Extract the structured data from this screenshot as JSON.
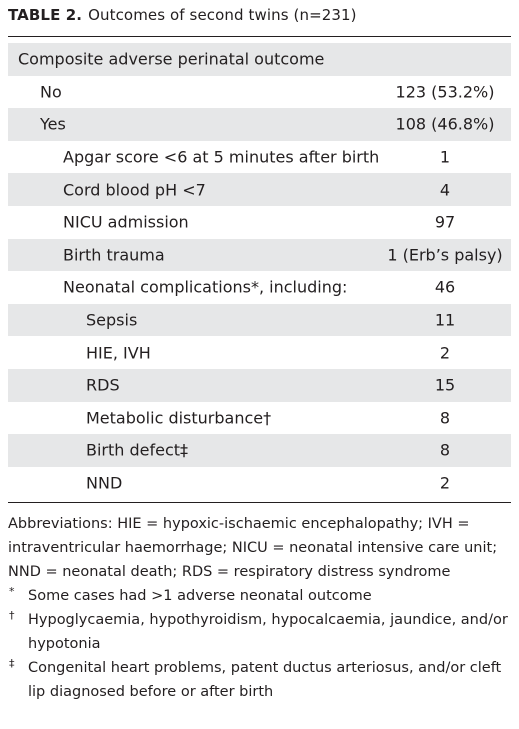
{
  "header": {
    "label": "TABLE 2.",
    "title": "Outcomes of second twins (n=231)"
  },
  "table": {
    "rows": [
      [
        "Composite adverse perinatal outcome",
        null
      ],
      [
        "No",
        "123 (53.2%)"
      ],
      [
        "Yes",
        "108 (46.8%)"
      ],
      [
        "Apgar score <6 at 5 minutes after birth",
        "1"
      ],
      [
        "Cord blood pH <7",
        "4"
      ],
      [
        "NICU admission",
        "97"
      ],
      [
        "Birth trauma",
        "1 (Erb’s palsy)"
      ],
      [
        "Neonatal complications*, including:",
        "46"
      ],
      [
        "Sepsis",
        "11"
      ],
      [
        "HIE, IVH",
        "2"
      ],
      [
        "RDS",
        "15"
      ],
      [
        "Metabolic disturbance†",
        "8"
      ],
      [
        "Birth defect‡",
        "8"
      ],
      [
        "NND",
        "2"
      ]
    ]
  },
  "footnotes": {
    "abbreviations": "Abbreviations: HIE = hypoxic-ischaemic encephalopathy; IVH = intraventricular haemorrhage; NICU = neonatal intensive care unit; NND = neonatal death; RDS = respiratory distress syndrome",
    "notes": [
      {
        "symbol": "*",
        "text": "Some cases had >1 adverse neonatal outcome"
      },
      {
        "symbol": "†",
        "text": "Hypoglycaemia, hypothyroidism, hypocalcaemia, jaundice, and/or hypotonia"
      },
      {
        "symbol": "‡",
        "text": "Congenital heart problems, patent ductus arteriosus, and/or cleft lip diagnosed before or after birth"
      }
    ]
  }
}
